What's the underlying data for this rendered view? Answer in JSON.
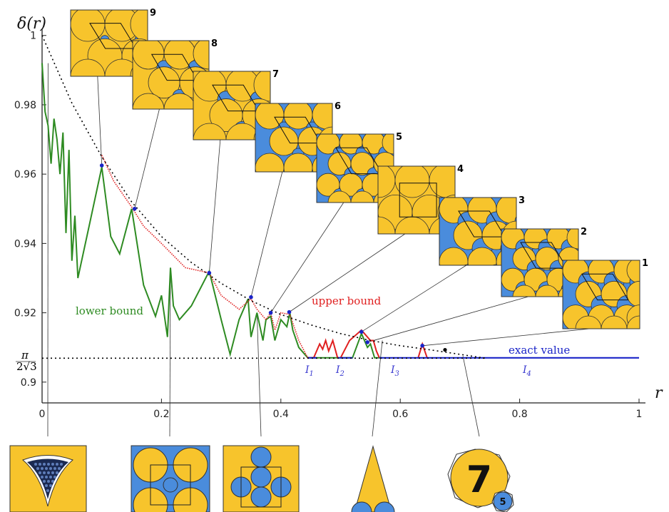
{
  "chart_data": {
    "type": "line",
    "title": "",
    "ylabel": "δ(r)",
    "xlabel": "r",
    "xlim": [
      0,
      1
    ],
    "ylim": [
      0.894,
      1.002
    ],
    "x_ticks": [
      "0",
      "0.2",
      "0.4",
      "0.6",
      "0.8",
      "1"
    ],
    "x_tick_values": [
      0,
      0.2,
      0.4,
      0.6,
      0.8,
      1
    ],
    "y_ticks": [
      "1",
      "0.98",
      "0.96",
      "0.94",
      "0.92",
      "0.9"
    ],
    "y_tick_values": [
      1,
      0.98,
      0.96,
      0.94,
      0.92,
      0.9
    ],
    "hex_label": {
      "num": "π",
      "den": "2√3",
      "value": 0.9069
    },
    "labels": {
      "lower": "lower bound",
      "upper": "upper bound",
      "exact": "exact value"
    },
    "intervals": [
      {
        "name": "I",
        "sub": "1",
        "x": 0.43
      },
      {
        "name": "I",
        "sub": "2",
        "x": 0.475
      },
      {
        "name": "I",
        "sub": "3",
        "x": 0.56
      },
      {
        "name": "I",
        "sub": "4",
        "x": 0.765
      }
    ],
    "series": [
      {
        "role": "lower-bound",
        "color": "#2e8b22",
        "x": [
          0,
          0.005,
          0.01,
          0.015,
          0.02,
          0.025,
          0.03,
          0.035,
          0.04,
          0.045,
          0.05,
          0.055,
          0.06,
          0.08,
          0.1,
          0.115,
          0.13,
          0.15,
          0.17,
          0.19,
          0.2,
          0.21,
          0.215,
          0.22,
          0.23,
          0.25,
          0.28,
          0.3,
          0.315,
          0.33,
          0.345,
          0.35,
          0.36,
          0.37,
          0.375,
          0.383,
          0.39,
          0.4,
          0.41,
          0.415,
          0.42,
          0.43,
          0.445,
          0.52,
          0.535,
          0.545,
          0.55,
          0.557,
          0.57
        ],
        "y": [
          0.992,
          0.978,
          0.974,
          0.963,
          0.976,
          0.97,
          0.96,
          0.972,
          0.943,
          0.967,
          0.935,
          0.948,
          0.93,
          0.946,
          0.962,
          0.942,
          0.937,
          0.95,
          0.928,
          0.919,
          0.925,
          0.913,
          0.933,
          0.922,
          0.918,
          0.922,
          0.932,
          0.918,
          0.908,
          0.918,
          0.924,
          0.913,
          0.92,
          0.912,
          0.918,
          0.919,
          0.912,
          0.918,
          0.916,
          0.92,
          0.915,
          0.91,
          0.907,
          0.907,
          0.914,
          0.91,
          0.911,
          0.907,
          0.907
        ]
      },
      {
        "role": "upper-bound",
        "color": "#e02020",
        "style": "dotted",
        "x": [
          0.1,
          0.12,
          0.15,
          0.17,
          0.2,
          0.24,
          0.28,
          0.3,
          0.33,
          0.35,
          0.36,
          0.375,
          0.383,
          0.39,
          0.4,
          0.415,
          0.43,
          0.445
        ],
        "y": [
          0.9655,
          0.958,
          0.9505,
          0.945,
          0.94,
          0.933,
          0.9315,
          0.925,
          0.921,
          0.924,
          0.921,
          0.918,
          0.92,
          0.915,
          0.92,
          0.9195,
          0.912,
          0.907
        ]
      },
      {
        "role": "upper-bound-solid",
        "color": "#e02020",
        "segments": [
          {
            "x": [
              0.445,
              0.455,
              0.465,
              0.47,
              0.475,
              0.48,
              0.487,
              0.495
            ],
            "y": [
              0.907,
              0.907,
              0.911,
              0.9095,
              0.912,
              0.909,
              0.912,
              0.907
            ]
          },
          {
            "x": [
              0.5,
              0.515,
              0.535,
              0.55,
              0.555,
              0.56,
              0.565
            ],
            "y": [
              0.907,
              0.912,
              0.915,
              0.912,
              0.912,
              0.909,
              0.907
            ]
          },
          {
            "x": [
              0.63,
              0.637,
              0.645
            ],
            "y": [
              0.907,
              0.911,
              0.907
            ]
          }
        ]
      },
      {
        "role": "exact",
        "color": "#1a24c8",
        "segments": [
          {
            "x": [
              0.445,
              0.46
            ],
            "y": [
              0.907,
              0.907
            ]
          },
          {
            "x": [
              0.495,
              0.52
            ],
            "y": [
              0.907,
              0.907
            ]
          },
          {
            "x": [
              0.565,
              1.0
            ],
            "y": [
              0.907,
              0.907
            ]
          }
        ]
      },
      {
        "role": "envelope",
        "color": "#000000",
        "style": "dotted",
        "x": [
          0,
          0.05,
          0.1,
          0.15,
          0.2,
          0.25,
          0.3,
          0.35,
          0.4,
          0.45,
          0.5,
          0.55,
          0.6,
          0.65,
          0.7,
          0.742
        ],
        "y": [
          1.0,
          0.9805,
          0.965,
          0.952,
          0.942,
          0.9345,
          0.9285,
          0.9235,
          0.9195,
          0.9165,
          0.914,
          0.912,
          0.9105,
          0.9093,
          0.908,
          0.9069
        ]
      },
      {
        "role": "hexagonal-level",
        "color": "#000000",
        "style": "dotted",
        "x": [
          0,
          0.742
        ],
        "y": [
          0.9069,
          0.9069
        ]
      }
    ],
    "marked_points": [
      {
        "n": "9",
        "x": 0.1,
        "y": 0.9625
      },
      {
        "n": "8",
        "x": 0.155,
        "y": 0.95
      },
      {
        "n": "7",
        "x": 0.28,
        "y": 0.9315
      },
      {
        "n": "6",
        "x": 0.35,
        "y": 0.9245
      },
      {
        "n": "5",
        "x": 0.383,
        "y": 0.92
      },
      {
        "n": "4",
        "x": 0.414,
        "y": 0.9202
      },
      {
        "n": "3",
        "x": 0.535,
        "y": 0.9145
      },
      {
        "n": "2",
        "x": 0.545,
        "y": 0.9115
      },
      {
        "n": "1",
        "x": 0.637,
        "y": 0.9105
      }
    ],
    "black_point": {
      "x": 0.675,
      "y": 0.9093
    }
  },
  "insets": [
    {
      "n": "9"
    },
    {
      "n": "8"
    },
    {
      "n": "7"
    },
    {
      "n": "6"
    },
    {
      "n": "5"
    },
    {
      "n": "4"
    },
    {
      "n": "3"
    },
    {
      "n": "2"
    },
    {
      "n": "1"
    }
  ],
  "bottom_insets": {
    "big_label": "7",
    "small_label": "5"
  },
  "colors": {
    "gold": "#f7c42c",
    "blue": "#4a8cdc",
    "lower": "#2e8b22",
    "upper": "#e02020",
    "exact": "#1a24c8"
  }
}
